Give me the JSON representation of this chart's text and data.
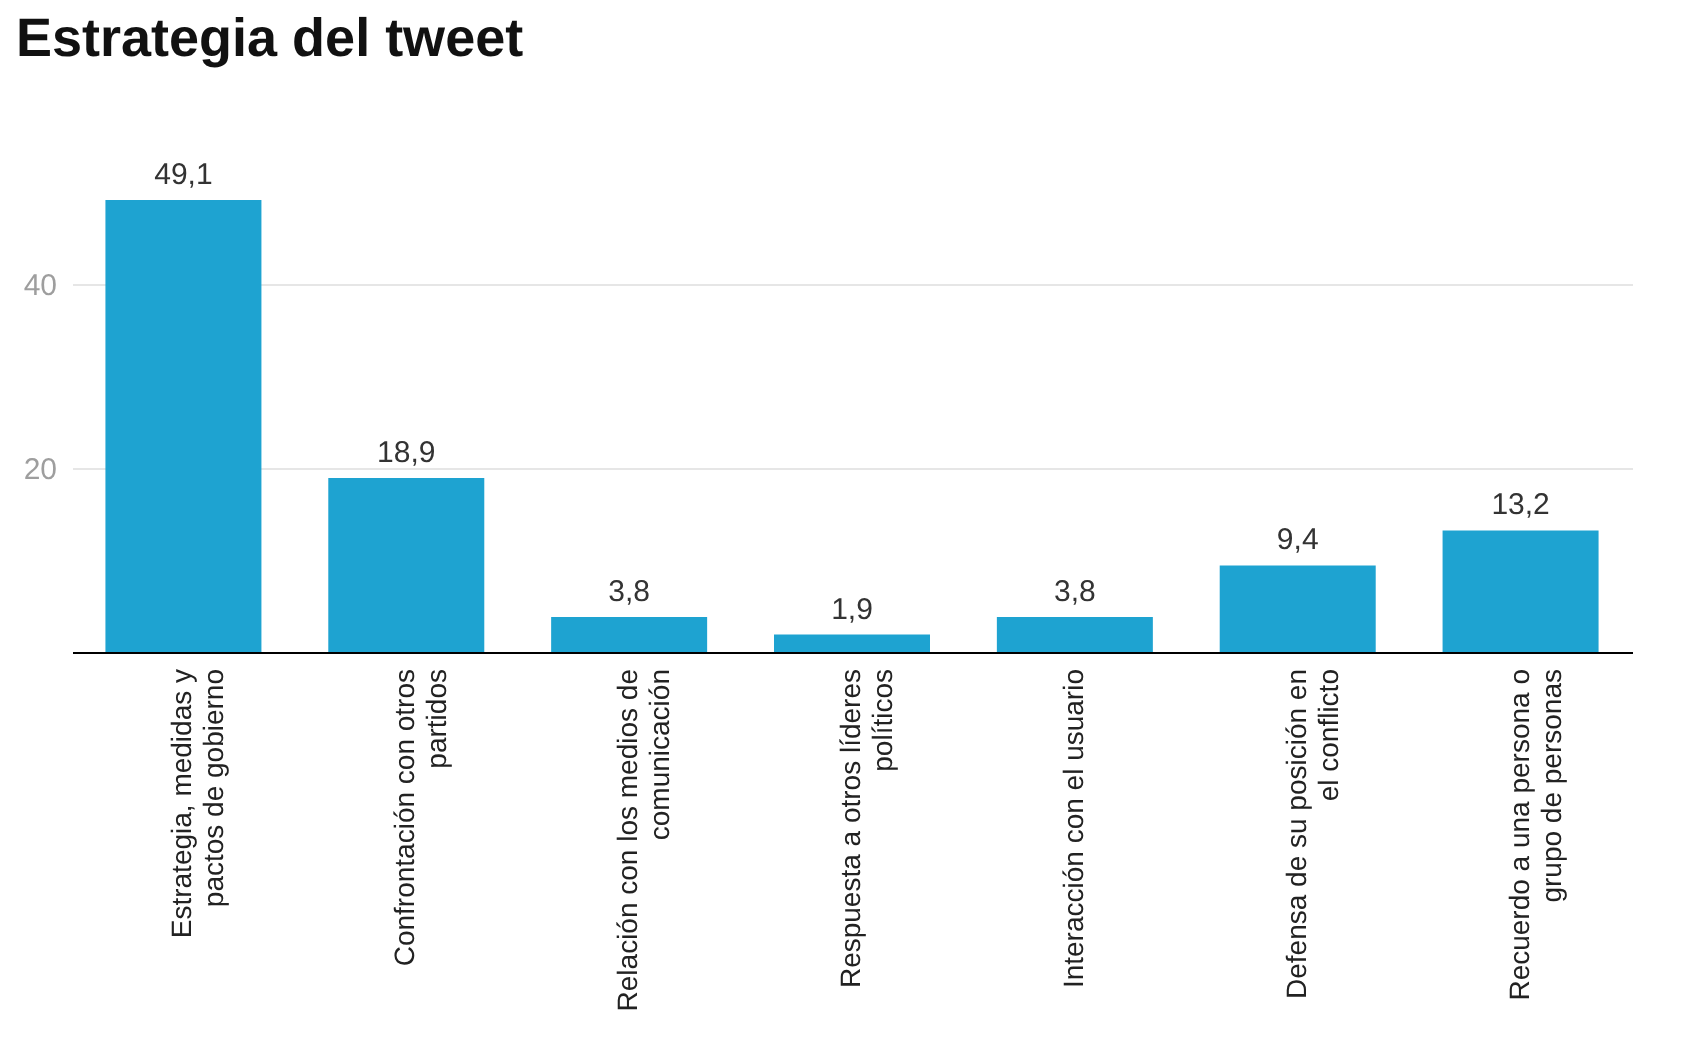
{
  "chart_data": {
    "type": "bar",
    "title": "Estrategia del tweet",
    "categories": [
      "Estrategia, medidas y pactos de gobierno",
      "Confrontación con otros partidos",
      "Relación con los medios de comunicación",
      "Respuesta a otros líderes políticos",
      "Interacción con el usuario",
      "Defensa de su posición en el conflicto",
      "Recuerdo a una persona o grupo de personas"
    ],
    "values": [
      49.1,
      18.9,
      3.8,
      1.9,
      3.8,
      9.4,
      13.2
    ],
    "value_labels": [
      "49,1",
      "18,9",
      "3,8",
      "1,9",
      "3,8",
      "9,4",
      "13,2"
    ],
    "color": "#1ea3d1",
    "ylim": [
      0,
      49.1
    ],
    "yticks": [
      {
        "value": 0,
        "label": null
      },
      20,
      40
    ],
    "grid": "y"
  }
}
